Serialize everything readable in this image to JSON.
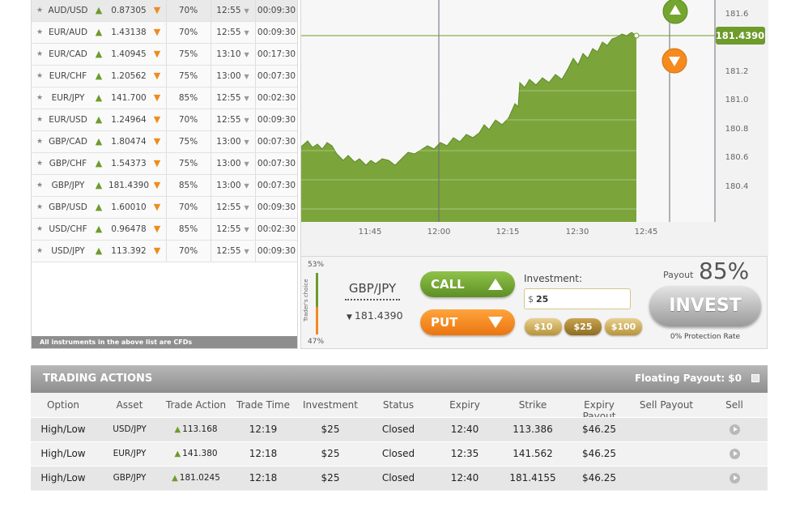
{
  "assets": [
    {
      "name": "AUD/USD",
      "price": "0.87305",
      "payout": "70%",
      "expiry": "12:55",
      "remaining": "00:09:30"
    },
    {
      "name": "EUR/AUD",
      "price": "1.43138",
      "payout": "70%",
      "expiry": "12:55",
      "remaining": "00:09:30"
    },
    {
      "name": "EUR/CAD",
      "price": "1.40945",
      "payout": "75%",
      "expiry": "13:10",
      "remaining": "00:17:30"
    },
    {
      "name": "EUR/CHF",
      "price": "1.20562",
      "payout": "75%",
      "expiry": "13:00",
      "remaining": "00:07:30"
    },
    {
      "name": "EUR/JPY",
      "price": "141.700",
      "payout": "85%",
      "expiry": "12:55",
      "remaining": "00:02:30"
    },
    {
      "name": "EUR/USD",
      "price": "1.24964",
      "payout": "70%",
      "expiry": "12:55",
      "remaining": "00:09:30"
    },
    {
      "name": "GBP/CAD",
      "price": "1.80474",
      "payout": "75%",
      "expiry": "13:00",
      "remaining": "00:07:30"
    },
    {
      "name": "GBP/CHF",
      "price": "1.54373",
      "payout": "75%",
      "expiry": "13:00",
      "remaining": "00:07:30"
    },
    {
      "name": "GBP/JPY",
      "price": "181.4390",
      "payout": "85%",
      "expiry": "13:00",
      "remaining": "00:07:30"
    },
    {
      "name": "GBP/USD",
      "price": "1.60010",
      "payout": "70%",
      "expiry": "12:55",
      "remaining": "00:09:30"
    },
    {
      "name": "USD/CHF",
      "price": "0.96478",
      "payout": "85%",
      "expiry": "12:55",
      "remaining": "00:02:30"
    },
    {
      "name": "USD/JPY",
      "price": "113.392",
      "payout": "70%",
      "expiry": "12:55",
      "remaining": "00:09:30"
    }
  ],
  "cfd_note": "All instruments in the above list are CFDs",
  "chart_data": {
    "type": "area",
    "x_ticks": [
      "11:45",
      "12:00",
      "12:15",
      "12:30",
      "12:45"
    ],
    "y_ticks": [
      "181.6",
      "181.2",
      "181.0",
      "180.8",
      "180.6",
      "180.4"
    ],
    "current_price": "181.4390",
    "color": "#7ba53a"
  },
  "traders_choice": {
    "top": "53%",
    "bottom": "47%",
    "label": "Trader's choice"
  },
  "selected_asset": {
    "name": "GBP/JPY",
    "price": "181.4390"
  },
  "call_label": "CALL",
  "put_label": "PUT",
  "investment": {
    "label": "Investment:",
    "currency": "$",
    "value": "25",
    "chips": [
      "$10",
      "$25",
      "$100"
    ]
  },
  "payout": {
    "label": "Payout",
    "value": "85%"
  },
  "invest_label": "INVEST",
  "protection_rate": "0% Protection Rate",
  "trading_actions": {
    "title": "TRADING ACTIONS",
    "floating_payout": "Floating Payout:  $0",
    "columns": [
      "Option",
      "Asset",
      "Trade Action",
      "Trade Time",
      "Investment",
      "Status",
      "Expiry",
      "Strike",
      "Expiry Payout",
      "Sell Payout",
      "Sell"
    ],
    "rows": [
      {
        "option": "High/Low",
        "asset": "USD/JPY",
        "action": "113.168",
        "time": "12:19",
        "investment": "$25",
        "status": "Closed",
        "expiry": "12:40",
        "strike": "113.386",
        "expiry_payout": "$46.25",
        "sell_payout": ""
      },
      {
        "option": "High/Low",
        "asset": "EUR/JPY",
        "action": "141.380",
        "time": "12:18",
        "investment": "$25",
        "status": "Closed",
        "expiry": "12:35",
        "strike": "141.562",
        "expiry_payout": "$46.25",
        "sell_payout": ""
      },
      {
        "option": "High/Low",
        "asset": "GBP/JPY",
        "action": "181.0245",
        "time": "12:18",
        "investment": "$25",
        "status": "Closed",
        "expiry": "12:40",
        "strike": "181.4155",
        "expiry_payout": "$46.25",
        "sell_payout": ""
      }
    ]
  }
}
